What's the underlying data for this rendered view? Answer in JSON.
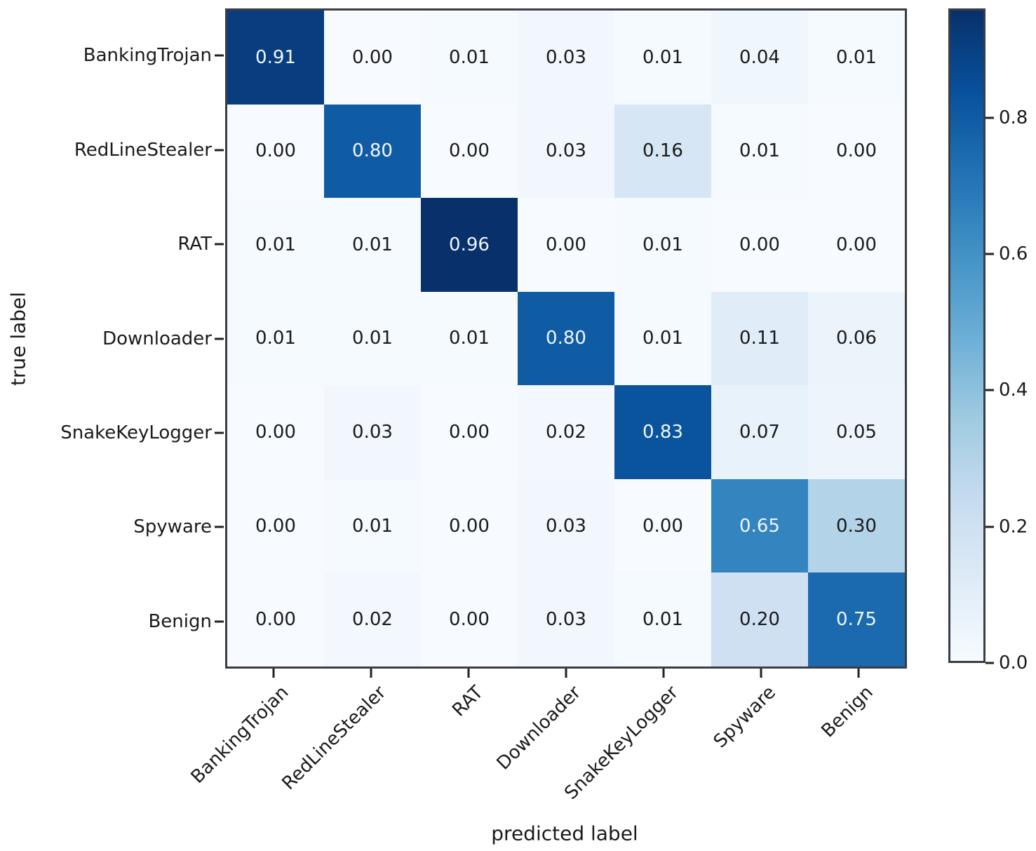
{
  "chart_data": {
    "type": "heatmap",
    "subtype": "confusion-matrix",
    "xlabel": "predicted label",
    "ylabel": "true label",
    "categories": [
      "BankingTrojan",
      "RedLineStealer",
      "RAT",
      "Downloader",
      "SnakeKeyLogger",
      "Spyware",
      "Benign"
    ],
    "matrix": [
      [
        0.91,
        0.0,
        0.01,
        0.03,
        0.01,
        0.04,
        0.01
      ],
      [
        0.0,
        0.8,
        0.0,
        0.03,
        0.16,
        0.01,
        0.0
      ],
      [
        0.01,
        0.01,
        0.96,
        0.0,
        0.01,
        0.0,
        0.0
      ],
      [
        0.01,
        0.01,
        0.01,
        0.8,
        0.01,
        0.11,
        0.06
      ],
      [
        0.0,
        0.03,
        0.0,
        0.02,
        0.83,
        0.07,
        0.05
      ],
      [
        0.0,
        0.01,
        0.0,
        0.03,
        0.0,
        0.65,
        0.3
      ],
      [
        0.0,
        0.02,
        0.0,
        0.03,
        0.01,
        0.2,
        0.75
      ]
    ],
    "value_decimals": 2,
    "vmin": 0.0,
    "vmax": 0.96,
    "colormap": "Blues",
    "colormap_stops": [
      "#f7fbff",
      "#deebf7",
      "#c6dbef",
      "#9ecae1",
      "#6baed6",
      "#4292c6",
      "#2171b5",
      "#08519c",
      "#08306b"
    ],
    "cell_text_light": "#f0f6fd",
    "cell_text_dark": "#1a1a1a",
    "colorbar": {
      "tick_labels": [
        "0.8",
        "0.6",
        "0.4",
        "0.2",
        "0.0"
      ],
      "tick_values": [
        0.8,
        0.6,
        0.4,
        0.2,
        0.0
      ]
    },
    "legend_position": "right",
    "grid": false
  }
}
